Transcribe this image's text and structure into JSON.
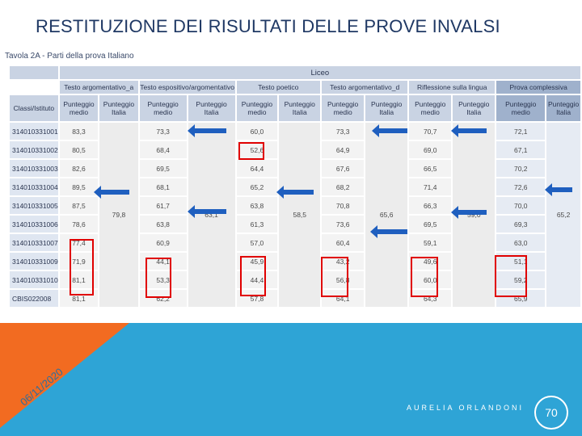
{
  "title": "RESTITUZIONE DEI RISULTATI DELLE PROVE INVALSI",
  "tavola": "Tavola 2A - Parti della prova Italiano",
  "liceo": "Liceo",
  "sections": [
    "Testo argomentativo_a",
    "Testo espositivo/argomentativo",
    "Testo poetico",
    "Testo argomentativo_d",
    "Riflessione sulla lingua",
    "Prova complessiva"
  ],
  "headers": {
    "classe": "Classi/Istituto",
    "medio": "Punteggio medio",
    "italia": "Punteggio Italia"
  },
  "rows": [
    {
      "school": "314010331001",
      "v": [
        "83,3",
        "73,3",
        "60,0",
        "73,3",
        "70,7",
        "72,1"
      ]
    },
    {
      "school": "314010331002",
      "v": [
        "80,5",
        "68,4",
        "52,6",
        "64,9",
        "69,0",
        "67,1"
      ]
    },
    {
      "school": "314010331003",
      "v": [
        "82,6",
        "69,5",
        "64,4",
        "67,6",
        "66,5",
        "70,2"
      ]
    },
    {
      "school": "314010331004",
      "v": [
        "89,5",
        "68,1",
        "65,2",
        "68,2",
        "71,4",
        "72,6"
      ]
    },
    {
      "school": "314010331005",
      "v": [
        "87,5",
        "61,7",
        "63,8",
        "70,8",
        "66,3",
        "70,0"
      ]
    },
    {
      "school": "314010331006",
      "v": [
        "78,6",
        "63,8",
        "61,3",
        "73,6",
        "69,5",
        "69,3"
      ]
    },
    {
      "school": "314010331007",
      "v": [
        "77,4",
        "60,9",
        "57,0",
        "60,4",
        "59,1",
        "63,0"
      ]
    },
    {
      "school": "314010331009",
      "v": [
        "71,9",
        "44,1",
        "45,9",
        "43,2",
        "49,6",
        "51,1"
      ]
    },
    {
      "school": "314010331010",
      "v": [
        "81,1",
        "53,3",
        "44,4",
        "56,8",
        "60,0",
        "59,2"
      ]
    },
    {
      "school": "CBIS022008",
      "v": [
        "81,1",
        "62,2",
        "57,8",
        "64,1",
        "64,3",
        "65,9"
      ]
    }
  ],
  "italia": [
    "79,8",
    "63,1",
    "58,5",
    "65,6",
    "59,0",
    "65,2"
  ],
  "footer": {
    "author": "AURELIA ORLANDONI",
    "page": "70",
    "date": "06/11/2020"
  }
}
